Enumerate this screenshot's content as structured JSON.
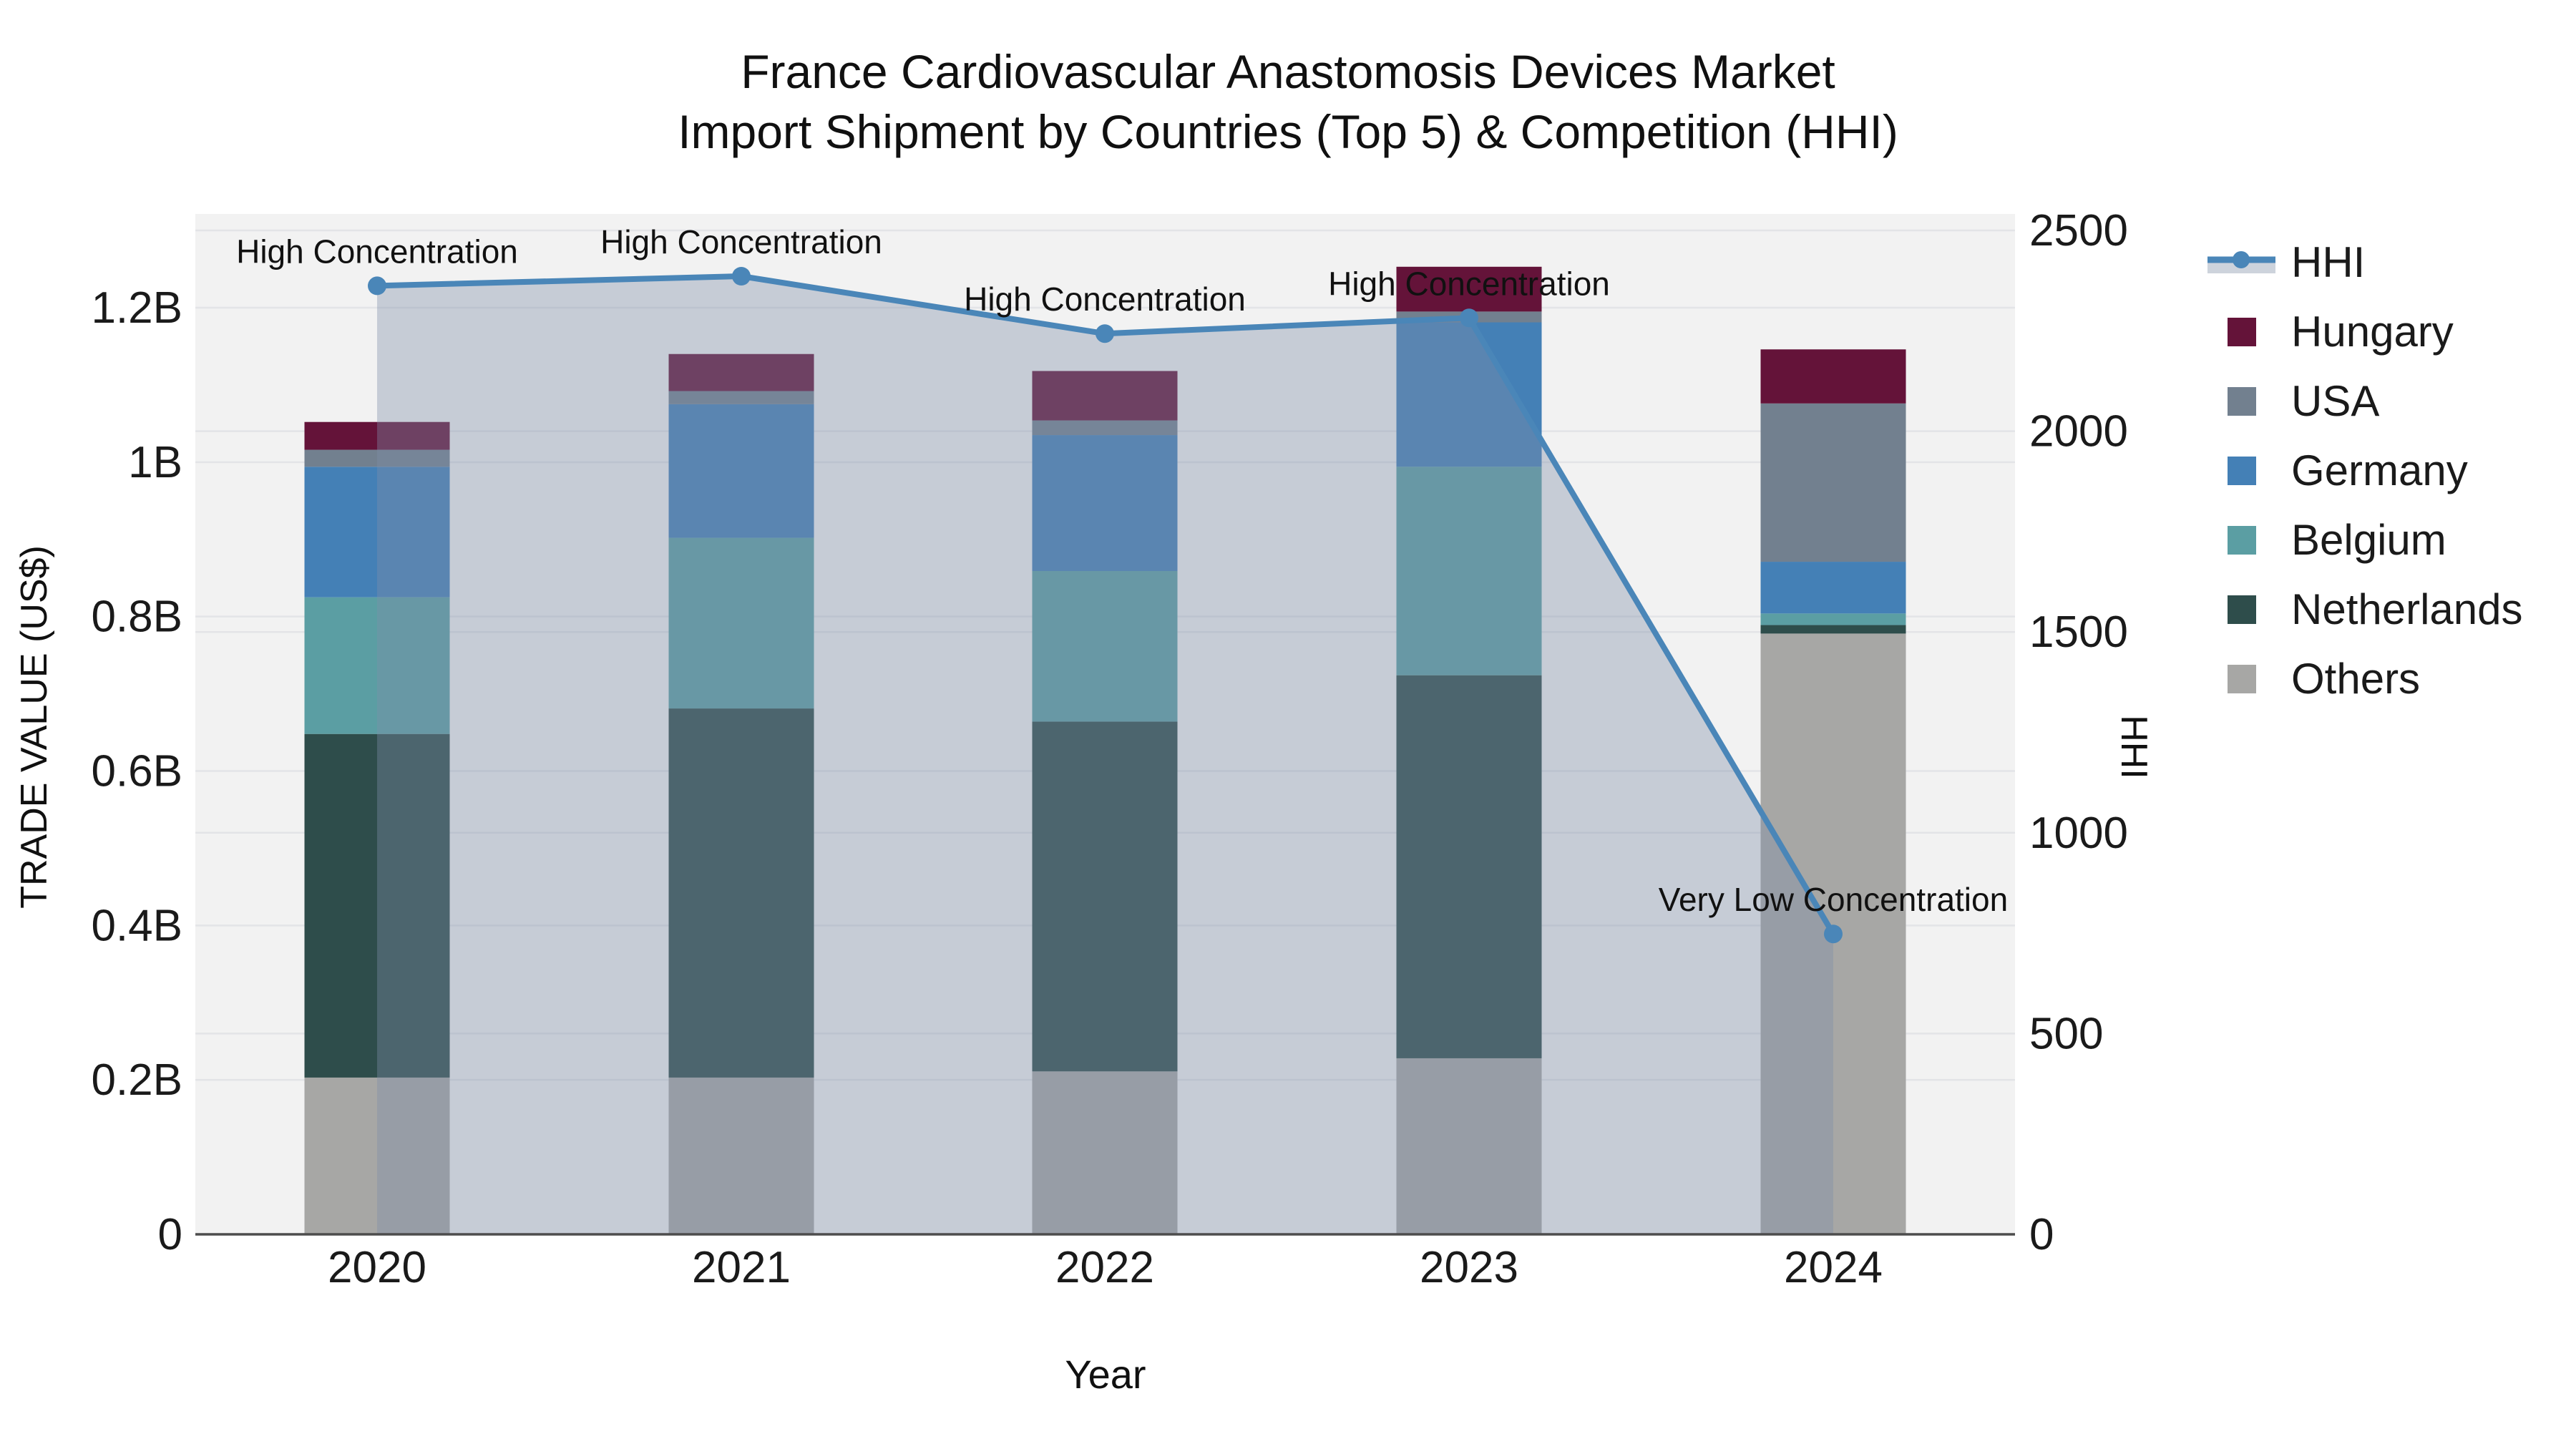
{
  "title": {
    "line1": "France Cardiovascular Anastomosis Devices Market",
    "line2": "Import Shipment by Countries (Top 5) & Competition (HHI)"
  },
  "axes": {
    "x": {
      "title": "Year",
      "tick_labels": [
        "2020",
        "2021",
        "2022",
        "2023",
        "2024"
      ]
    },
    "y_left": {
      "title": "TRADE VALUE (US$)",
      "tick_labels": [
        "0",
        "0.2B",
        "0.4B",
        "0.6B",
        "0.8B",
        "1B",
        "1.2B"
      ],
      "tick_values_b": [
        0,
        0.2,
        0.4,
        0.6,
        0.8,
        1.0,
        1.2
      ]
    },
    "y_right": {
      "title": "HHI",
      "tick_labels": [
        "0",
        "500",
        "1000",
        "1500",
        "2000",
        "2500"
      ],
      "tick_values": [
        0,
        500,
        1000,
        1500,
        2000,
        2500
      ]
    }
  },
  "legend": [
    {
      "label": "HHI",
      "type": "line",
      "color": "#4A86B8"
    },
    {
      "label": "Hungary",
      "type": "square",
      "color": "#641339"
    },
    {
      "label": "USA",
      "type": "square",
      "color": "#72808F"
    },
    {
      "label": "Germany",
      "type": "square",
      "color": "#4480B6"
    },
    {
      "label": "Belgium",
      "type": "square",
      "color": "#5B9EA3"
    },
    {
      "label": "Netherlands",
      "type": "square",
      "color": "#2E4D4B"
    },
    {
      "label": "Others",
      "type": "square",
      "color": "#A7A7A5"
    }
  ],
  "colors": {
    "plot_bg": "#F2F2F2",
    "gridline": "#E3E4E7",
    "axis_line": "#4D4D4D",
    "hhi_line": "#4A86B8",
    "hhi_fill": "rgba(125,142,168,0.38)",
    "text": "#1a1a1a"
  },
  "chart_data": {
    "type": "combo: stacked bar + line (dual y-axes)",
    "x": [
      "2020",
      "2021",
      "2022",
      "2023",
      "2024"
    ],
    "bar_unit": "billion US$ (left axis TRADE VALUE)",
    "bar_stack_order_bottom_to_top": [
      "Others",
      "Netherlands",
      "Belgium",
      "Germany",
      "USA",
      "Hungary"
    ],
    "bar_series": [
      {
        "name": "Others",
        "color": "#A7A7A5",
        "values": [
          0.203,
          0.203,
          0.211,
          0.228,
          0.778
        ]
      },
      {
        "name": "Netherlands",
        "color": "#2E4D4B",
        "values": [
          0.445,
          0.478,
          0.453,
          0.496,
          0.011
        ]
      },
      {
        "name": "Belgium",
        "color": "#5B9EA3",
        "values": [
          0.177,
          0.221,
          0.195,
          0.27,
          0.015
        ]
      },
      {
        "name": "Germany",
        "color": "#4480B6",
        "values": [
          0.169,
          0.173,
          0.176,
          0.187,
          0.067
        ]
      },
      {
        "name": "USA",
        "color": "#72808F",
        "values": [
          0.022,
          0.017,
          0.019,
          0.014,
          0.205
        ]
      },
      {
        "name": "Hungary",
        "color": "#641339",
        "values": [
          0.036,
          0.048,
          0.064,
          0.058,
          0.07
        ]
      }
    ],
    "bar_totals": [
      1.052,
      1.14,
      1.118,
      1.253,
      1.146
    ],
    "line_series": {
      "name": "HHI",
      "color": "#4A86B8",
      "axis": "right",
      "values": [
        2362,
        2386,
        2243,
        2282,
        748
      ],
      "area_fill": "rgba(125,142,168,0.38)"
    },
    "annotations": [
      {
        "x": "2020",
        "text": "High Concentration"
      },
      {
        "x": "2021",
        "text": "High Concentration"
      },
      {
        "x": "2022",
        "text": "High Concentration"
      },
      {
        "x": "2023",
        "text": "High Concentration"
      },
      {
        "x": "2024",
        "text": "Very Low Concentration"
      }
    ],
    "ylim_left_b": [
      0,
      1.322
    ],
    "ylim_right": [
      0,
      2540
    ],
    "grid": "on (both axes, horizontal)",
    "legend_position": "right"
  }
}
